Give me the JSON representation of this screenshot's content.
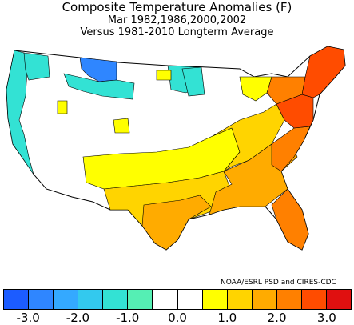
{
  "header": {
    "title": "Composite Temperature Anomalies (F)",
    "subtitle": "Mar  1982,1986,2000,2002",
    "reference": "Versus 1981-2010 Longterm Average"
  },
  "credit": "NOAA/ESRL PSD and CIRES-CDC",
  "legend": {
    "colors": [
      "#1c5cff",
      "#2f86ff",
      "#34a9ff",
      "#33c9ee",
      "#33e2d4",
      "#55efb4",
      "#ffffff",
      "#ffffff",
      "#ffff00",
      "#ffd400",
      "#ffab00",
      "#ff8000",
      "#ff4c00",
      "#e01010"
    ],
    "ticks": [
      "-3.0",
      "-2.0",
      "-1.0",
      "0.0",
      "1.0",
      "2.0",
      "3.0"
    ]
  },
  "map_colors": {
    "cold2": "#2f86ff",
    "cold1": "#33e2d4",
    "neutral": "#ffffff",
    "warm1": "#ffff00",
    "warm2": "#ffd400",
    "warm3": "#ffab00",
    "warm4": "#ff8000",
    "warm5": "#ff4c00"
  }
}
